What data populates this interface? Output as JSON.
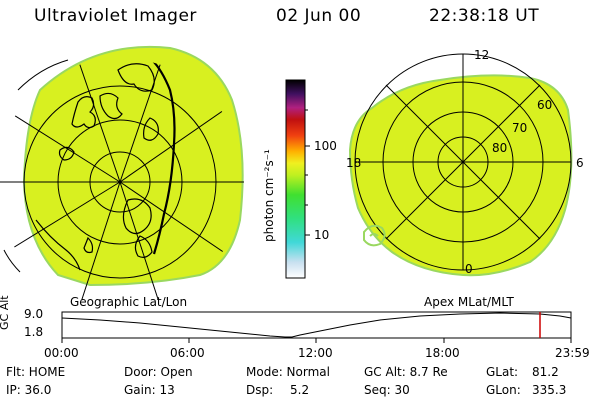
{
  "header": {
    "title": "Ultraviolet Imager",
    "date": "02 Jun 00",
    "time": "22:38:18 UT"
  },
  "colorbar": {
    "unit_label": "photon cm⁻²s⁻¹",
    "tick_100": "100",
    "tick_10": "10"
  },
  "left_panel": {
    "label": "Geographic Lat/Lon"
  },
  "right_panel": {
    "label": "Apex MLat/MLT",
    "mlt_labels": {
      "top": "12",
      "left": "18",
      "right": "6",
      "bottom": "0"
    },
    "mlat_labels": [
      "60",
      "70",
      "80"
    ]
  },
  "altitude_plot": {
    "ylabel": "GC Alt",
    "ymax_label": "9.0",
    "ymin_label": "1.8",
    "x_ticks": [
      "00:00",
      "06:00",
      "12:00",
      "18:00",
      "23:59"
    ],
    "marker_color": "#cc0000"
  },
  "info": {
    "flt": "Flt: HOME",
    "ip": "IP: 36.0",
    "door": "Door: Open",
    "gain": "Gain: 13",
    "mode": "Mode: Normal",
    "dsp_label": "Dsp:",
    "dsp_value": "5.2",
    "gc_alt": "GC Alt: 8.7 Re",
    "seq": "Seq: 30",
    "glat_label": "GLat:",
    "glat_value": "81.2",
    "glon_label": "GLon:",
    "glon_value": "335.3"
  },
  "colors": {
    "fill": "#d8f020",
    "fill_edge": "#9ad860"
  }
}
